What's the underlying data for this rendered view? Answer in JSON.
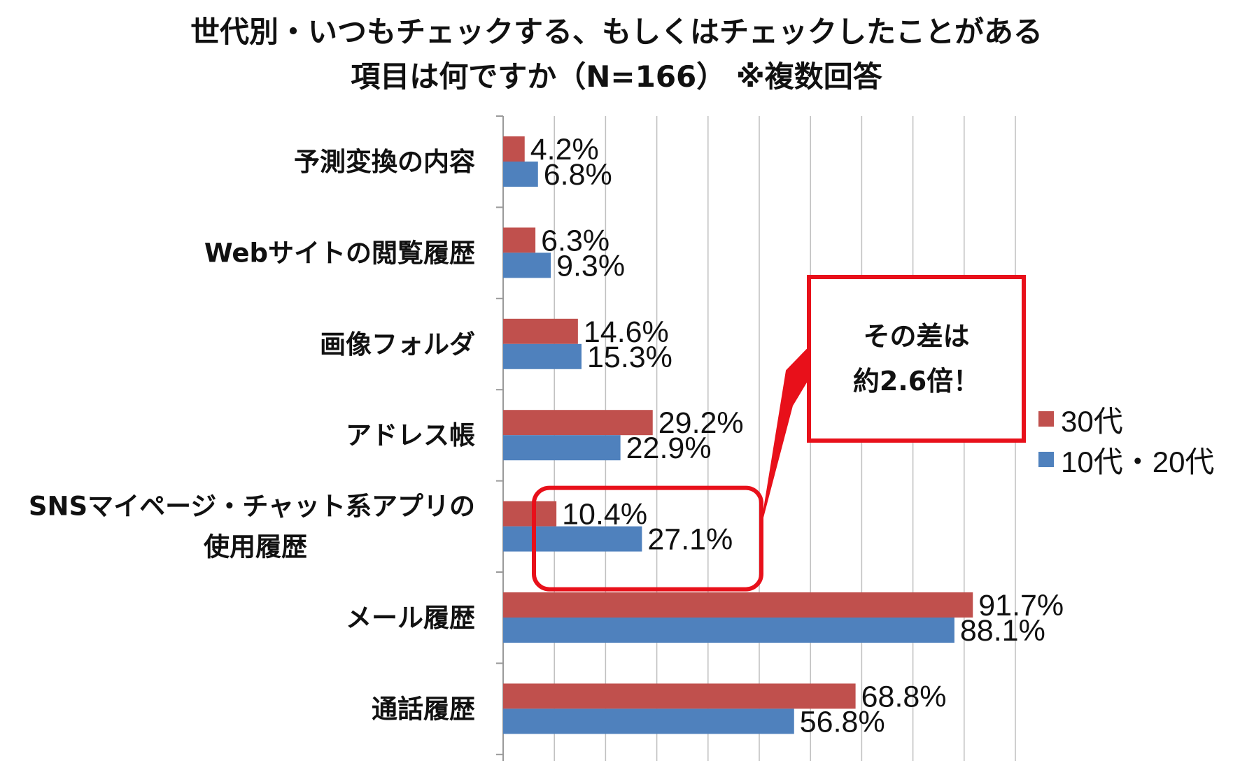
{
  "colors": {
    "series_30": "#c0504d",
    "series_1020": "#4f81bd",
    "highlight": "#e8101a",
    "grid": "#bfbfbf"
  },
  "callout": {
    "line1": "その差は",
    "line2": "約2.6倍！"
  },
  "chart_data": {
    "type": "bar",
    "orientation": "horizontal",
    "title": "世代別・いつもチェックする、もしくはチェックしたことがある 項目は何ですか（N=166） ※複数回答",
    "title_lines": [
      "世代別・いつもチェックする、もしくはチェックしたことがある",
      "項目は何ですか（N=166） ※複数回答"
    ],
    "categories": [
      [
        "予測変換の内容"
      ],
      [
        "Webサイトの閲覧履歴"
      ],
      [
        "画像フォルダ"
      ],
      [
        "アドレス帳"
      ],
      [
        "SNSマイページ・チャット系アプリの",
        "使用履歴"
      ],
      [
        "メール履歴"
      ],
      [
        "通話履歴"
      ]
    ],
    "series": [
      {
        "name": "30代",
        "values": [
          4.2,
          6.3,
          14.6,
          29.2,
          10.4,
          91.7,
          68.8
        ],
        "labels": [
          "4.2%",
          "6.3%",
          "14.6%",
          "29.2%",
          "10.4%",
          "91.7%",
          "68.8%"
        ]
      },
      {
        "name": "10代・20代",
        "values": [
          6.8,
          9.3,
          15.3,
          22.9,
          27.1,
          88.1,
          56.8
        ],
        "labels": [
          "6.8%",
          "9.3%",
          "15.3%",
          "22.9%",
          "27.1%",
          "88.1%",
          "56.8%"
        ]
      }
    ],
    "xlim": [
      0,
      100
    ],
    "grid": true,
    "legend_position": "right",
    "highlight_category_index": 4
  }
}
